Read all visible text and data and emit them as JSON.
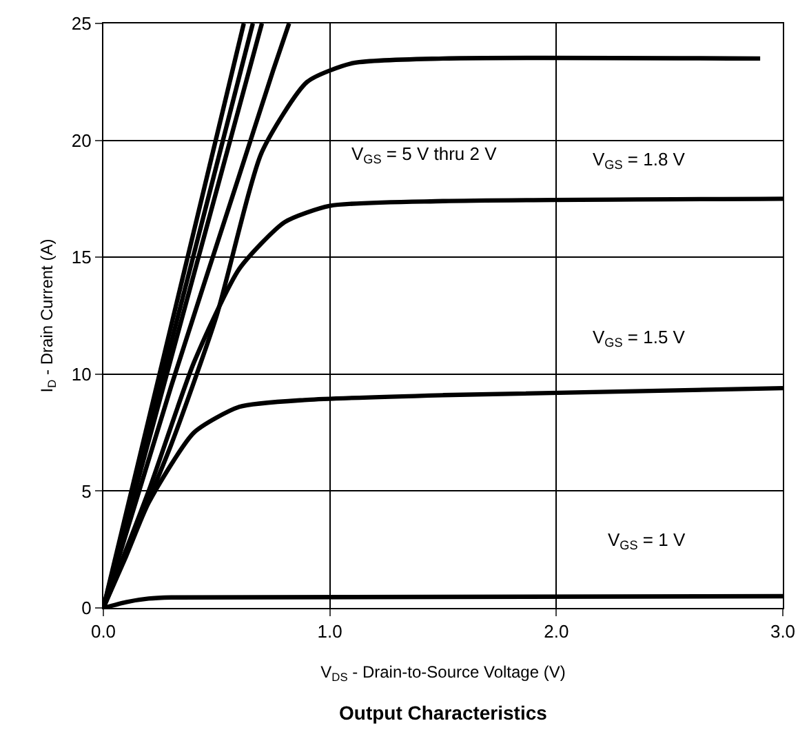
{
  "chart_data": {
    "type": "line",
    "title": "Output Characteristics",
    "xlabel": "V$_{DS}$ - Drain-to-Source Voltage (V)",
    "ylabel": "I$_{D}$ - Drain Current (A)",
    "xlim": [
      0,
      3
    ],
    "ylim": [
      0,
      25
    ],
    "xticks": [
      {
        "value": 0,
        "label": "0.0"
      },
      {
        "value": 1,
        "label": "1.0"
      },
      {
        "value": 2,
        "label": "2.0"
      },
      {
        "value": 3,
        "label": "3.0"
      }
    ],
    "yticks": [
      0,
      5,
      10,
      15,
      20,
      25
    ],
    "grid": true,
    "marker": "none",
    "line_style": "solid",
    "series": [
      {
        "color": "#000000",
        "x": [
          0,
          0.62
        ],
        "values": [
          0,
          25
        ]
      },
      {
        "color": "#000000",
        "x": [
          0,
          0.66
        ],
        "values": [
          0,
          25
        ]
      },
      {
        "color": "#000000",
        "x": [
          0,
          0.7
        ],
        "values": [
          0,
          25
        ]
      },
      {
        "color": "#000000",
        "x": [
          0,
          0.3,
          0.6,
          0.75,
          0.82
        ],
        "values": [
          0,
          9.5,
          18.5,
          23,
          25
        ]
      },
      {
        "color": "#000000",
        "x": [
          0,
          0.3,
          0.5,
          0.7,
          0.9,
          1.1,
          1.5,
          2.9
        ],
        "values": [
          0,
          7,
          12.5,
          19.5,
          22.5,
          23.3,
          23.5,
          23.5
        ]
      },
      {
        "color": "#000000",
        "x": [
          0,
          0.2,
          0.4,
          0.6,
          0.8,
          1.0,
          1.5,
          3.0
        ],
        "values": [
          0,
          5,
          10.5,
          14.5,
          16.5,
          17.2,
          17.4,
          17.5
        ]
      },
      {
        "color": "#000000",
        "x": [
          0,
          0.1,
          0.2,
          0.4,
          0.6,
          0.9,
          1.5,
          3.0
        ],
        "values": [
          0,
          2.2,
          4.5,
          7.5,
          8.6,
          8.9,
          9.1,
          9.4
        ]
      },
      {
        "color": "#000000",
        "x": [
          0,
          0.1,
          0.2,
          0.3,
          3.0
        ],
        "values": [
          0,
          0.25,
          0.4,
          0.45,
          0.5
        ]
      }
    ],
    "annotations": [
      "V$_{GS}$ = 5 V thru 2 V",
      "V$_{GS}$ = 1.8 V",
      "V$_{GS}$ = 1.5 V",
      "V$_{GS}$ = 1 V"
    ]
  }
}
